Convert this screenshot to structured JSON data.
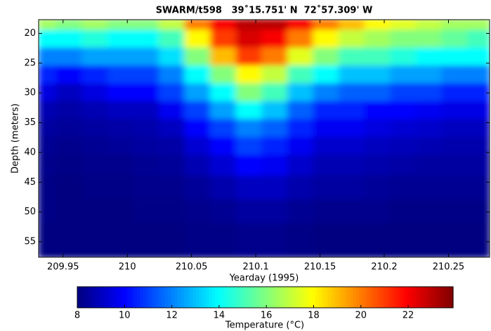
{
  "chart_data": {
    "type": "heatmap",
    "title": "SWARM/t598   39˚15.751' N  72˚57.309' W",
    "x_label": "Yearday (1995)",
    "y_label": "Depth (meters)",
    "xlim": [
      209.931,
      210.282
    ],
    "xticks": [
      209.95,
      210,
      210.05,
      210.1,
      210.15,
      210.2,
      210.25
    ],
    "ylim": [
      17.7,
      57.6
    ],
    "yticks": [
      20,
      25,
      30,
      35,
      40,
      45,
      50,
      55
    ],
    "y_reversed": true,
    "colormap": "jet",
    "clim": [
      8,
      23.9
    ],
    "colorbar_ticks": [
      8,
      10,
      12,
      14,
      16,
      18,
      20,
      22
    ],
    "colorbar_label": "Temperature (°C)",
    "x": [
      209.935,
      209.955,
      209.975,
      209.995,
      210.015,
      210.035,
      210.055,
      210.075,
      210.095,
      210.115,
      210.135,
      210.155,
      210.175,
      210.195,
      210.215,
      210.235,
      210.255,
      210.275
    ],
    "y": [
      18,
      21,
      24,
      27,
      30,
      33,
      36,
      39,
      42,
      46,
      50,
      54
    ],
    "z": [
      [
        16.5,
        16,
        16.5,
        16,
        16,
        17,
        20,
        22,
        23,
        23,
        22,
        20,
        19,
        18,
        17.5,
        17,
        16.5,
        16.5
      ],
      [
        14,
        14,
        14.5,
        14,
        14,
        15,
        18,
        21,
        22.5,
        22,
        20,
        18,
        17,
        16.5,
        16,
        16,
        15.5,
        15
      ],
      [
        12,
        12,
        12.5,
        12.5,
        12.5,
        13.5,
        16,
        19,
        21,
        20,
        17.5,
        16,
        15,
        15,
        14.5,
        14,
        14,
        14
      ],
      [
        10.5,
        10,
        10.5,
        11,
        11,
        12,
        14,
        16,
        18,
        17,
        15,
        14,
        13,
        13,
        12.5,
        12.5,
        12,
        12
      ],
      [
        9.5,
        9,
        9.5,
        10,
        10,
        11,
        12.5,
        14,
        16,
        15,
        13,
        12,
        11.5,
        11.5,
        11,
        11,
        10.5,
        10.5
      ],
      [
        8.8,
        8.6,
        8.8,
        9,
        9,
        9.8,
        11,
        12.5,
        14,
        13,
        11.5,
        10.5,
        10.5,
        10,
        10,
        9.8,
        9.6,
        9.6
      ],
      [
        8.5,
        8.4,
        8.5,
        8.6,
        8.7,
        9,
        10,
        11,
        12,
        11.5,
        10.5,
        9.8,
        9.8,
        9.5,
        9.3,
        9.2,
        9,
        9
      ],
      [
        8.3,
        8.2,
        8.3,
        8.4,
        8.5,
        8.6,
        9.3,
        10,
        11,
        10.5,
        9.8,
        9.2,
        9.2,
        9,
        8.9,
        8.8,
        8.7,
        8.7
      ],
      [
        8.2,
        8.1,
        8.2,
        8.2,
        8.3,
        8.4,
        8.8,
        9.3,
        10,
        9.8,
        9.2,
        8.8,
        8.8,
        8.7,
        8.6,
        8.5,
        8.5,
        8.5
      ],
      [
        8.1,
        8,
        8.1,
        8.1,
        8.2,
        8.2,
        8.4,
        8.7,
        9,
        9,
        8.7,
        8.5,
        8.5,
        8.4,
        8.3,
        8.3,
        8.3,
        8.3
      ],
      [
        8.1,
        8,
        8,
        8,
        8.1,
        8.1,
        8.2,
        8.3,
        8.5,
        8.5,
        8.3,
        8.2,
        8.2,
        8.2,
        8.1,
        8.1,
        8.1,
        8.1
      ],
      [
        8,
        8,
        8,
        8,
        8,
        8,
        8.1,
        8.1,
        8.2,
        8.2,
        8.1,
        8,
        8,
        8,
        8,
        8,
        8,
        8
      ]
    ]
  }
}
